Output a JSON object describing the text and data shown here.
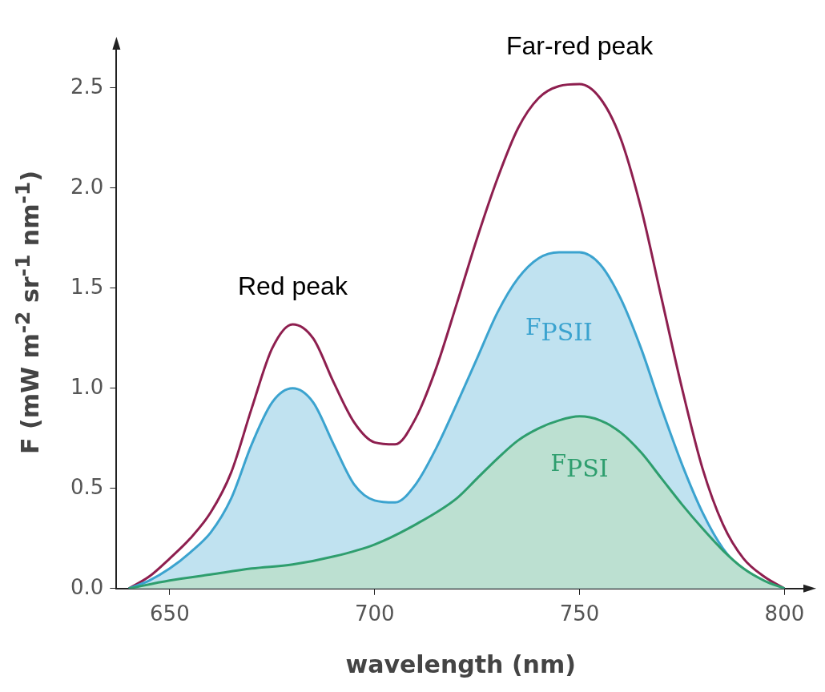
{
  "chart_data": {
    "type": "line",
    "xlabel": "wavelength (nm)",
    "ylabel": "F (mW m$^{-2}$ sr$^{-1}$ nm$^{-1}$)",
    "xlim": [
      637,
      805
    ],
    "xticks": [
      650,
      700,
      750,
      800
    ],
    "ylim": [
      0,
      2.7
    ],
    "yticks": [
      {
        "value": 0,
        "label": "0.0"
      },
      {
        "value": 0.5,
        "label": "0.5"
      },
      {
        "value": 1,
        "label": "1.0"
      },
      {
        "value": 1.5,
        "label": "1.5"
      },
      {
        "value": 2,
        "label": "2.0"
      },
      {
        "value": 2.5,
        "label": "2.5"
      }
    ],
    "grid": false,
    "legend": false,
    "marker": "none",
    "line_style": "solid",
    "series": [
      {
        "type": "line",
        "color": "#8e1f4f",
        "x": [
          640,
          645,
          650,
          655,
          660,
          665,
          670,
          675,
          680,
          685,
          690,
          695,
          700,
          705,
          710,
          715,
          720,
          725,
          730,
          735,
          740,
          745,
          750,
          755,
          760,
          765,
          770,
          775,
          780,
          785,
          790,
          795,
          800
        ],
        "values": [
          0,
          0.06,
          0.15,
          0.25,
          0.38,
          0.58,
          0.9,
          1.2,
          1.32,
          1.25,
          1.03,
          0.83,
          0.73,
          0.72,
          0.85,
          1.1,
          1.42,
          1.75,
          2.05,
          2.3,
          2.45,
          2.51,
          2.52,
          2.45,
          2.25,
          1.9,
          1.45,
          1.0,
          0.6,
          0.32,
          0.15,
          0.06,
          0
        ]
      },
      {
        "type": "area",
        "name": "F$_{PSII}$",
        "color": "#3ba3cf",
        "x": [
          640,
          645,
          650,
          655,
          660,
          665,
          670,
          675,
          680,
          685,
          690,
          695,
          700,
          705,
          710,
          715,
          720,
          725,
          730,
          735,
          740,
          745,
          750,
          755,
          760,
          765,
          770,
          775,
          780,
          785,
          790,
          795,
          800
        ],
        "values": [
          0,
          0.04,
          0.1,
          0.18,
          0.28,
          0.45,
          0.72,
          0.93,
          1.0,
          0.93,
          0.72,
          0.52,
          0.44,
          0.43,
          0.52,
          0.7,
          0.92,
          1.15,
          1.38,
          1.55,
          1.65,
          1.68,
          1.68,
          1.62,
          1.45,
          1.2,
          0.9,
          0.62,
          0.38,
          0.2,
          0.09,
          0.03,
          0
        ]
      },
      {
        "type": "area",
        "name": "F$_{PSI}$",
        "color": "#2e9e6e",
        "x": [
          640,
          650,
          660,
          670,
          680,
          690,
          700,
          710,
          720,
          725,
          730,
          735,
          740,
          745,
          750,
          755,
          760,
          765,
          770,
          775,
          780,
          785,
          790,
          795,
          800
        ],
        "values": [
          0,
          0.04,
          0.07,
          0.1,
          0.12,
          0.16,
          0.22,
          0.32,
          0.45,
          0.55,
          0.65,
          0.74,
          0.8,
          0.84,
          0.86,
          0.84,
          0.78,
          0.68,
          0.55,
          0.42,
          0.3,
          0.19,
          0.1,
          0.04,
          0
        ]
      }
    ],
    "annotations": [
      {
        "text": "Red peak",
        "x": 680,
        "y": 1.32
      },
      {
        "text": "Far-red peak",
        "x": 750,
        "y": 2.52
      }
    ]
  }
}
